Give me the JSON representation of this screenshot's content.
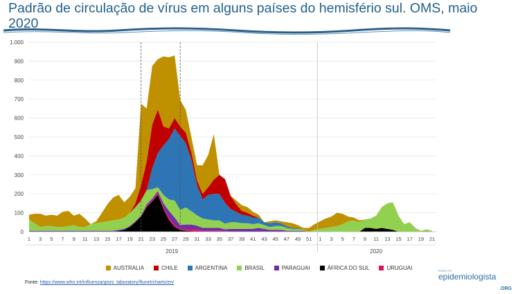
{
  "page": {
    "title": "Padrão de circulação de vírus em alguns países do hemisfério sul. OMS, maio 2020",
    "source_label": "Fonte:",
    "source_url": "https://www.who.int/influenza/gisrs_laboratory/flunet/charts/en/",
    "logo_small": "RENATO",
    "logo_main": "epidemiologista",
    "logo_org": ".ORG"
  },
  "chart_data": {
    "type": "area",
    "stacked": true,
    "title": "",
    "xlabel": "",
    "ylabel": "",
    "ylim": [
      0,
      1000
    ],
    "yticks": [
      0,
      100,
      200,
      300,
      400,
      500,
      600,
      700,
      800,
      900,
      1000
    ],
    "ytick_labels": [
      "0",
      "100",
      "200",
      "300",
      "400",
      "500",
      "600",
      "700",
      "800",
      "900",
      "1.000"
    ],
    "x": [
      1,
      2,
      3,
      4,
      5,
      6,
      7,
      8,
      9,
      10,
      11,
      12,
      13,
      14,
      15,
      16,
      17,
      18,
      19,
      20,
      21,
      22,
      23,
      24,
      25,
      26,
      27,
      28,
      29,
      30,
      31,
      32,
      33,
      34,
      35,
      36,
      37,
      38,
      39,
      40,
      41,
      42,
      43,
      44,
      45,
      46,
      47,
      48,
      49,
      50,
      51,
      52,
      53,
      54,
      55,
      56,
      57,
      58,
      59,
      60,
      61,
      62,
      63,
      64,
      65,
      66,
      67,
      68,
      69,
      70,
      71,
      72,
      73
    ],
    "xtick_labels": [
      "1",
      "3",
      "5",
      "7",
      "9",
      "11",
      "13",
      "15",
      "17",
      "19",
      "21",
      "23",
      "25",
      "27",
      "29",
      "31",
      "33",
      "35",
      "37",
      "39",
      "41",
      "43",
      "45",
      "47",
      "49",
      "51",
      "1",
      "3",
      "5",
      "7",
      "9",
      "11",
      "13",
      "15",
      "17",
      "19",
      "21"
    ],
    "year_groups": [
      {
        "label": "2019",
        "from": 1,
        "to": 52
      },
      {
        "label": "2020",
        "from": 53,
        "to": 73
      }
    ],
    "year_divider_after": 52,
    "markers": [
      21,
      28
    ],
    "grid": true,
    "legend_position": "bottom",
    "series": [
      {
        "name": "ÁFRICA DO SUL",
        "color": "#000000",
        "values": [
          0,
          0,
          0,
          0,
          0,
          0,
          0,
          0,
          0,
          0,
          0,
          0,
          0,
          0,
          0,
          0,
          5,
          10,
          25,
          50,
          80,
          130,
          160,
          195,
          120,
          60,
          25,
          10,
          5,
          3,
          2,
          0,
          0,
          0,
          0,
          0,
          0,
          0,
          0,
          0,
          0,
          0,
          0,
          0,
          0,
          0,
          0,
          0,
          0,
          0,
          0,
          0,
          0,
          0,
          0,
          0,
          0,
          0,
          0,
          0,
          20,
          20,
          15,
          20,
          15,
          10,
          0,
          0,
          0,
          0,
          0,
          0,
          0
        ]
      },
      {
        "name": "URUGUAI",
        "color": "#e0115f",
        "values": [
          0,
          0,
          0,
          0,
          0,
          0,
          0,
          0,
          0,
          0,
          0,
          0,
          0,
          0,
          0,
          0,
          0,
          0,
          0,
          0,
          0,
          5,
          5,
          10,
          10,
          15,
          10,
          5,
          8,
          10,
          10,
          5,
          5,
          5,
          5,
          3,
          0,
          0,
          0,
          0,
          0,
          0,
          0,
          0,
          0,
          0,
          0,
          0,
          0,
          0,
          0,
          0,
          0,
          0,
          0,
          0,
          0,
          0,
          0,
          0,
          0,
          0,
          0,
          0,
          0,
          0,
          0,
          0,
          0,
          0,
          0,
          3,
          0
        ]
      },
      {
        "name": "PARAGUAI",
        "color": "#6f2da8",
        "values": [
          5,
          5,
          5,
          5,
          5,
          5,
          5,
          5,
          5,
          5,
          5,
          5,
          5,
          5,
          5,
          5,
          5,
          5,
          5,
          5,
          5,
          10,
          10,
          10,
          20,
          35,
          40,
          20,
          25,
          25,
          20,
          15,
          15,
          15,
          15,
          10,
          15,
          15,
          15,
          15,
          15,
          20,
          15,
          10,
          10,
          10,
          5,
          5,
          5,
          5,
          0,
          0,
          0,
          0,
          0,
          0,
          0,
          0,
          0,
          0,
          0,
          0,
          0,
          0,
          0,
          0,
          0,
          0,
          0,
          0,
          0,
          0,
          0
        ]
      },
      {
        "name": "BRASIL",
        "color": "#92d050",
        "values": [
          60,
          40,
          20,
          25,
          25,
          20,
          20,
          25,
          30,
          20,
          20,
          35,
          40,
          45,
          50,
          55,
          55,
          60,
          70,
          75,
          80,
          75,
          50,
          20,
          45,
          60,
          90,
          80,
          90,
          70,
          55,
          50,
          45,
          40,
          40,
          30,
          35,
          35,
          30,
          30,
          25,
          25,
          20,
          15,
          20,
          20,
          15,
          10,
          10,
          5,
          0,
          10,
          15,
          20,
          25,
          30,
          40,
          55,
          60,
          50,
          45,
          50,
          70,
          110,
          135,
          145,
          85,
          40,
          50,
          20,
          5,
          10,
          5
        ]
      },
      {
        "name": "ARGENTINA",
        "color": "#2e75b6",
        "values": [
          0,
          0,
          0,
          0,
          0,
          0,
          0,
          0,
          0,
          0,
          0,
          0,
          0,
          0,
          0,
          0,
          0,
          0,
          0,
          0,
          0,
          0,
          110,
          180,
          260,
          320,
          380,
          390,
          340,
          270,
          160,
          100,
          130,
          140,
          140,
          110,
          70,
          55,
          45,
          40,
          35,
          30,
          15,
          20,
          20,
          15,
          10,
          5,
          5,
          0,
          0,
          0,
          0,
          0,
          0,
          0,
          0,
          0,
          0,
          0,
          0,
          0,
          0,
          0,
          0,
          0,
          0,
          0,
          0,
          0,
          0,
          0,
          0
        ]
      },
      {
        "name": "CHILE",
        "color": "#c00000",
        "values": [
          0,
          0,
          0,
          0,
          0,
          0,
          0,
          0,
          0,
          0,
          0,
          0,
          0,
          0,
          0,
          0,
          0,
          0,
          0,
          20,
          80,
          150,
          230,
          230,
          100,
          55,
          55,
          50,
          55,
          40,
          25,
          30,
          40,
          75,
          100,
          125,
          70,
          40,
          20,
          15,
          10,
          0,
          0,
          0,
          0,
          0,
          0,
          0,
          0,
          0,
          0,
          0,
          0,
          0,
          0,
          0,
          0,
          0,
          0,
          0,
          0,
          0,
          0,
          0,
          0,
          0,
          0,
          0,
          0,
          0,
          0,
          0,
          0
        ]
      },
      {
        "name": "AUSTRALIA",
        "color": "#bf9000",
        "values": [
          25,
          50,
          70,
          55,
          60,
          60,
          80,
          80,
          50,
          70,
          45,
          0,
          10,
          50,
          90,
          120,
          130,
          80,
          85,
          80,
          430,
          280,
          310,
          265,
          370,
          375,
          330,
          140,
          120,
          80,
          80,
          150,
          170,
          240,
          0,
          0,
          0,
          20,
          30,
          30,
          20,
          15,
          0,
          10,
          10,
          10,
          20,
          25,
          15,
          10,
          20,
          30,
          40,
          50,
          55,
          70,
          55,
          25,
          15,
          10,
          0,
          0,
          0,
          0,
          0,
          0,
          0,
          0,
          0,
          0,
          0,
          0,
          0
        ]
      }
    ],
    "legend_order": [
      "AUSTRALIA",
      "CHILE",
      "ARGENTINA",
      "BRASIL",
      "PARAGUAI",
      "ÁFRICA DO SUL",
      "URUGUAI"
    ]
  }
}
